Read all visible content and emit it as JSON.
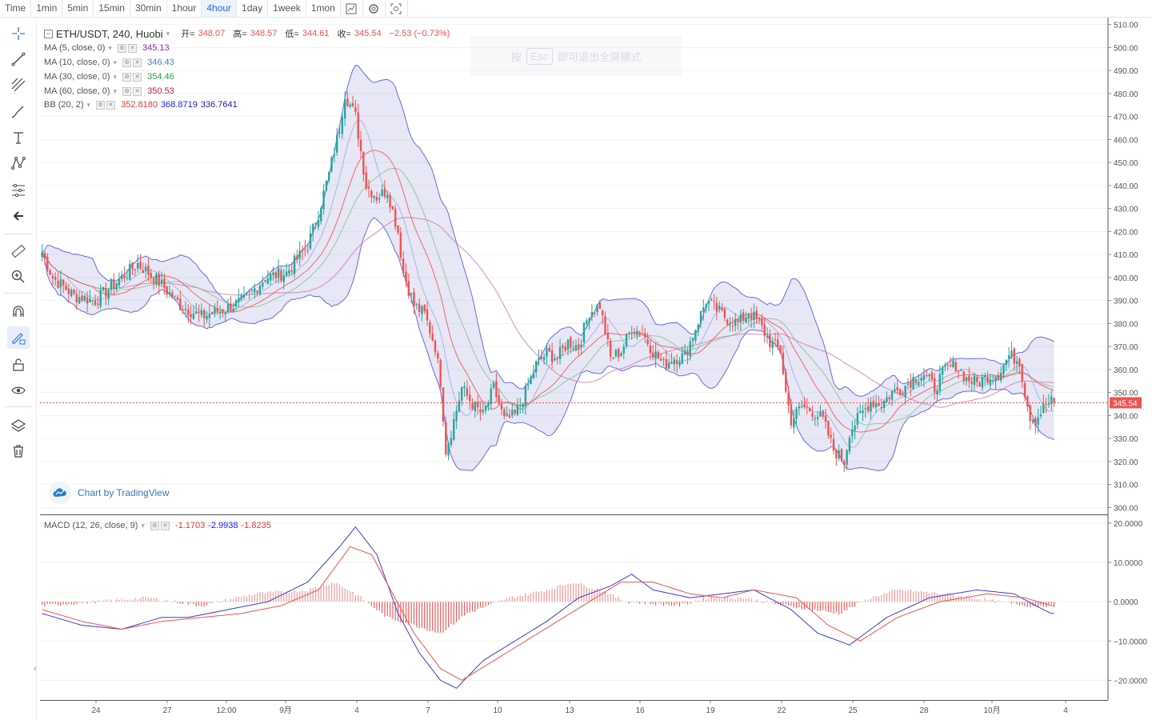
{
  "toolbar": {
    "items": [
      {
        "label": "Time"
      },
      {
        "label": "1min"
      },
      {
        "label": "5min"
      },
      {
        "label": "15min"
      },
      {
        "label": "30min"
      },
      {
        "label": "1hour"
      },
      {
        "label": "4hour",
        "active": true
      },
      {
        "label": "1day"
      },
      {
        "label": "1week"
      },
      {
        "label": "1mon"
      }
    ],
    "icons": [
      "chart-type-icon",
      "settings-icon",
      "screenshot-icon"
    ]
  },
  "left_tools": [
    "crosshair-icon",
    "trend-line-icon",
    "fib-icon",
    "brush-icon",
    "text-icon",
    "pattern-icon",
    "forecast-icon",
    "back-arrow-icon",
    "ruler-icon",
    "zoom-in-icon",
    "magnet-icon",
    "lock-drawing-icon",
    "lock-icon",
    "eye-icon",
    "layers-icon",
    "trash-icon"
  ],
  "legend": {
    "title": "ETH/USDT, 240, Huobi",
    "open_label": "开=",
    "open": "348.07",
    "high_label": "高=",
    "high": "348.57",
    "low_label": "低=",
    "low": "344.61",
    "close_label": "收=",
    "close": "345.54",
    "change": "−2.53 (−0.73%)",
    "ma5_label": "MA (5, close, 0)",
    "ma5_value": "345.13",
    "ma10_label": "MA (10, close, 0)",
    "ma10_value": "346.43",
    "ma30_label": "MA (30, close, 0)",
    "ma30_value": "354.46",
    "ma60_label": "MA (60, close, 0)",
    "ma60_value": "350.53",
    "bb_label": "BB (20, 2)",
    "bb_basis": "352.8180",
    "bb_upper": "368.8719",
    "bb_lower": "336.7641",
    "macd_label": "MACD (12, 26, close, 9)",
    "macd_hist": "-1.1703",
    "macd_line": "-2.9938",
    "macd_signal": "-1.8235"
  },
  "fullscreen_hint": {
    "pre": "按",
    "key": "Esc",
    "post": "即可退出全屏模式"
  },
  "watermark": "Chart by TradingView",
  "price_tag": "345.54",
  "colors": {
    "up": "#26a69a",
    "down": "#ef5350",
    "ma5": "#9c27b0",
    "ma10": "#4682b4",
    "ma30": "#2e9e44",
    "ma60": "#e91e63",
    "bb_upper": "#1a1aff",
    "bb_basis": "#ff2020",
    "bb_lower": "#2020a0",
    "macd_line": "#3b3bd6",
    "macd_signal": "#ef5350"
  },
  "chart_data": {
    "type": "candlestick",
    "symbol": "ETH/USDT",
    "interval": "240",
    "exchange": "Huobi",
    "price_axis": {
      "ticks": [
        510,
        500,
        490,
        480,
        470,
        460,
        450,
        440,
        430,
        420,
        410,
        400,
        390,
        380,
        370,
        360,
        350,
        340,
        330,
        320,
        310,
        300
      ],
      "range": [
        297,
        513
      ]
    },
    "macd_axis": {
      "ticks": [
        20,
        10,
        0,
        -10,
        -20
      ],
      "tick_labels": [
        "20.0000",
        "10.0000",
        "0.0000",
        "−10.0000",
        "−20.0000"
      ],
      "range": [
        -25,
        22
      ]
    },
    "x_labels": [
      "24",
      "27",
      "12:00",
      "9月",
      "4",
      "7",
      "10",
      "13",
      "16",
      "19",
      "22",
      "25",
      "28",
      "10月",
      "4"
    ],
    "last_price": 345.54,
    "close_keypoints": [
      [
        0,
        411
      ],
      [
        4,
        400
      ],
      [
        12,
        392
      ],
      [
        20,
        390
      ],
      [
        28,
        398
      ],
      [
        36,
        406
      ],
      [
        44,
        398
      ],
      [
        52,
        388
      ],
      [
        60,
        383
      ],
      [
        68,
        386
      ],
      [
        76,
        390
      ],
      [
        84,
        400
      ],
      [
        92,
        402
      ],
      [
        100,
        414
      ],
      [
        104,
        428
      ],
      [
        108,
        445
      ],
      [
        112,
        465
      ],
      [
        114,
        480
      ],
      [
        118,
        470
      ],
      [
        122,
        440
      ],
      [
        126,
        435
      ],
      [
        130,
        438
      ],
      [
        134,
        420
      ],
      [
        136,
        402
      ],
      [
        140,
        388
      ],
      [
        144,
        384
      ],
      [
        148,
        370
      ],
      [
        150,
        355
      ],
      [
        152,
        325
      ],
      [
        154,
        333
      ],
      [
        158,
        352
      ],
      [
        162,
        345
      ],
      [
        166,
        340
      ],
      [
        170,
        352
      ],
      [
        174,
        338
      ],
      [
        178,
        340
      ],
      [
        182,
        350
      ],
      [
        186,
        362
      ],
      [
        190,
        367
      ],
      [
        194,
        365
      ],
      [
        198,
        372
      ],
      [
        202,
        370
      ],
      [
        206,
        385
      ],
      [
        210,
        388
      ],
      [
        214,
        365
      ],
      [
        218,
        368
      ],
      [
        222,
        378
      ],
      [
        226,
        376
      ],
      [
        230,
        368
      ],
      [
        234,
        362
      ],
      [
        238,
        365
      ],
      [
        242,
        366
      ],
      [
        246,
        378
      ],
      [
        250,
        390
      ],
      [
        254,
        386
      ],
      [
        258,
        382
      ],
      [
        262,
        380
      ],
      [
        266,
        385
      ],
      [
        270,
        380
      ],
      [
        274,
        372
      ],
      [
        278,
        368
      ],
      [
        280,
        350
      ],
      [
        282,
        338
      ],
      [
        286,
        344
      ],
      [
        290,
        342
      ],
      [
        294,
        338
      ],
      [
        298,
        325
      ],
      [
        302,
        320
      ],
      [
        304,
        333
      ],
      [
        308,
        340
      ],
      [
        312,
        346
      ],
      [
        316,
        345
      ],
      [
        320,
        350
      ],
      [
        324,
        352
      ],
      [
        328,
        356
      ],
      [
        332,
        358
      ],
      [
        336,
        352
      ],
      [
        340,
        360
      ],
      [
        344,
        362
      ],
      [
        348,
        356
      ],
      [
        352,
        354
      ],
      [
        356,
        357
      ],
      [
        360,
        358
      ],
      [
        364,
        366
      ],
      [
        368,
        364
      ],
      [
        370,
        350
      ],
      [
        372,
        340
      ],
      [
        374,
        338
      ],
      [
        378,
        345
      ],
      [
        380,
        346
      ]
    ],
    "macd_hist_keypoints": [
      [
        0,
        -1
      ],
      [
        40,
        1
      ],
      [
        60,
        -1
      ],
      [
        80,
        2
      ],
      [
        100,
        3
      ],
      [
        110,
        5
      ],
      [
        118,
        2
      ],
      [
        130,
        -4
      ],
      [
        140,
        -6
      ],
      [
        150,
        -8
      ],
      [
        160,
        -3
      ],
      [
        176,
        1
      ],
      [
        190,
        3
      ],
      [
        200,
        5
      ],
      [
        210,
        3
      ],
      [
        220,
        0
      ],
      [
        240,
        -1
      ],
      [
        250,
        1
      ],
      [
        264,
        1
      ],
      [
        280,
        -1
      ],
      [
        290,
        -2
      ],
      [
        300,
        -3
      ],
      [
        312,
        1
      ],
      [
        322,
        3
      ],
      [
        340,
        2
      ],
      [
        360,
        0
      ],
      [
        370,
        -1
      ],
      [
        380,
        -1
      ]
    ],
    "macd_line_keypoints": [
      [
        0,
        -3
      ],
      [
        15,
        -6
      ],
      [
        30,
        -7
      ],
      [
        45,
        -4
      ],
      [
        55,
        -4
      ],
      [
        70,
        -2
      ],
      [
        85,
        0
      ],
      [
        100,
        5
      ],
      [
        112,
        14
      ],
      [
        118,
        19
      ],
      [
        126,
        12
      ],
      [
        134,
        -3
      ],
      [
        142,
        -13
      ],
      [
        150,
        -20
      ],
      [
        156,
        -22
      ],
      [
        166,
        -15
      ],
      [
        178,
        -10
      ],
      [
        190,
        -5
      ],
      [
        202,
        1
      ],
      [
        214,
        4
      ],
      [
        222,
        7
      ],
      [
        230,
        3
      ],
      [
        244,
        1
      ],
      [
        256,
        2
      ],
      [
        268,
        3
      ],
      [
        282,
        -2
      ],
      [
        292,
        -8
      ],
      [
        304,
        -11
      ],
      [
        318,
        -4
      ],
      [
        334,
        1
      ],
      [
        352,
        3
      ],
      [
        366,
        2
      ],
      [
        374,
        -1
      ],
      [
        380,
        -3
      ]
    ],
    "macd_signal_keypoints": [
      [
        0,
        -2
      ],
      [
        15,
        -5
      ],
      [
        30,
        -7
      ],
      [
        45,
        -5
      ],
      [
        60,
        -4
      ],
      [
        75,
        -3
      ],
      [
        90,
        -1
      ],
      [
        104,
        3
      ],
      [
        116,
        14
      ],
      [
        124,
        12
      ],
      [
        132,
        2
      ],
      [
        140,
        -8
      ],
      [
        150,
        -17
      ],
      [
        158,
        -20
      ],
      [
        170,
        -15
      ],
      [
        182,
        -10
      ],
      [
        194,
        -5
      ],
      [
        206,
        0
      ],
      [
        218,
        5
      ],
      [
        230,
        5
      ],
      [
        244,
        2
      ],
      [
        256,
        1
      ],
      [
        268,
        3
      ],
      [
        284,
        1
      ],
      [
        296,
        -6
      ],
      [
        308,
        -10
      ],
      [
        322,
        -4
      ],
      [
        338,
        0
      ],
      [
        356,
        2
      ],
      [
        370,
        1
      ],
      [
        380,
        -1
      ]
    ]
  }
}
